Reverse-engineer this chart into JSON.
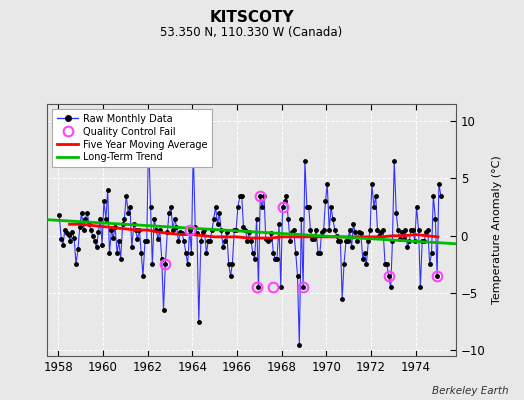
{
  "title": "KITSCOTY",
  "subtitle": "53.350 N, 110.330 W (Canada)",
  "ylabel": "Temperature Anomaly (°C)",
  "credit": "Berkeley Earth",
  "xlim": [
    1957.5,
    1975.8
  ],
  "ylim": [
    -10.5,
    11.5
  ],
  "yticks": [
    -10,
    -5,
    0,
    5,
    10
  ],
  "xticks": [
    1958,
    1960,
    1962,
    1964,
    1966,
    1968,
    1970,
    1972,
    1974
  ],
  "background_color": "#e8e8e8",
  "plot_background": "#e8e8e8",
  "raw_line_color": "#3333ff",
  "raw_dot_color": "#000000",
  "qc_fail_color": "#ff44ff",
  "moving_avg_color": "#ff0000",
  "trend_color": "#00bb00",
  "raw_data": {
    "times": [
      1958.04,
      1958.13,
      1958.21,
      1958.29,
      1958.38,
      1958.46,
      1958.54,
      1958.63,
      1958.71,
      1958.79,
      1958.88,
      1958.96,
      1959.04,
      1959.13,
      1959.21,
      1959.29,
      1959.38,
      1959.46,
      1959.54,
      1959.63,
      1959.71,
      1959.79,
      1959.88,
      1959.96,
      1960.04,
      1960.13,
      1960.21,
      1960.29,
      1960.38,
      1960.46,
      1960.54,
      1960.63,
      1960.71,
      1960.79,
      1960.88,
      1960.96,
      1961.04,
      1961.13,
      1961.21,
      1961.29,
      1961.38,
      1961.46,
      1961.54,
      1961.63,
      1961.71,
      1961.79,
      1961.88,
      1961.96,
      1962.04,
      1962.13,
      1962.21,
      1962.29,
      1962.38,
      1962.46,
      1962.54,
      1962.63,
      1962.71,
      1962.79,
      1962.88,
      1962.96,
      1963.04,
      1963.13,
      1963.21,
      1963.29,
      1963.38,
      1963.46,
      1963.54,
      1963.63,
      1963.71,
      1963.79,
      1963.88,
      1963.96,
      1964.04,
      1964.13,
      1964.21,
      1964.29,
      1964.38,
      1964.46,
      1964.54,
      1964.63,
      1964.71,
      1964.79,
      1964.88,
      1964.96,
      1965.04,
      1965.13,
      1965.21,
      1965.29,
      1965.38,
      1965.46,
      1965.54,
      1965.63,
      1965.71,
      1965.79,
      1965.88,
      1965.96,
      1966.04,
      1966.13,
      1966.21,
      1966.29,
      1966.38,
      1966.46,
      1966.54,
      1966.63,
      1966.71,
      1966.79,
      1966.88,
      1966.96,
      1967.04,
      1967.13,
      1967.21,
      1967.29,
      1967.38,
      1967.46,
      1967.54,
      1967.63,
      1967.71,
      1967.79,
      1967.88,
      1967.96,
      1968.04,
      1968.13,
      1968.21,
      1968.29,
      1968.38,
      1968.46,
      1968.54,
      1968.63,
      1968.71,
      1968.79,
      1968.88,
      1968.96,
      1969.04,
      1969.13,
      1969.21,
      1969.29,
      1969.38,
      1969.46,
      1969.54,
      1969.63,
      1969.71,
      1969.79,
      1969.88,
      1969.96,
      1970.04,
      1970.13,
      1970.21,
      1970.29,
      1970.38,
      1970.46,
      1970.54,
      1970.63,
      1970.71,
      1970.79,
      1970.88,
      1970.96,
      1971.04,
      1971.13,
      1971.21,
      1971.29,
      1971.38,
      1971.46,
      1971.54,
      1971.63,
      1971.71,
      1971.79,
      1971.88,
      1971.96,
      1972.04,
      1972.13,
      1972.21,
      1972.29,
      1972.38,
      1972.46,
      1972.54,
      1972.63,
      1972.71,
      1972.79,
      1972.88,
      1972.96,
      1973.04,
      1973.13,
      1973.21,
      1973.29,
      1973.38,
      1973.46,
      1973.54,
      1973.63,
      1973.71,
      1973.79,
      1973.88,
      1973.96,
      1974.04,
      1974.13,
      1974.21,
      1974.29,
      1974.38,
      1974.46,
      1974.54,
      1974.63,
      1974.71,
      1974.79,
      1974.88,
      1974.96,
      1975.04,
      1975.13
    ],
    "values": [
      1.8,
      -0.3,
      -0.8,
      0.5,
      0.2,
      0.1,
      -0.5,
      0.3,
      -0.2,
      -2.5,
      -1.2,
      0.8,
      2.0,
      0.5,
      1.5,
      2.0,
      1.0,
      0.5,
      0.0,
      -0.5,
      -1.0,
      0.3,
      1.5,
      -0.8,
      3.0,
      1.5,
      4.0,
      -1.5,
      0.5,
      -0.2,
      0.8,
      -1.5,
      -0.5,
      -2.0,
      1.0,
      1.5,
      3.5,
      2.0,
      2.5,
      -1.0,
      1.0,
      0.5,
      -0.3,
      0.5,
      -1.5,
      -3.5,
      -0.5,
      -0.5,
      8.5,
      2.5,
      -2.5,
      1.5,
      0.5,
      -0.3,
      0.5,
      -2.0,
      -6.5,
      -2.5,
      0.3,
      2.0,
      2.5,
      0.5,
      1.5,
      0.8,
      -0.5,
      0.3,
      0.2,
      -0.5,
      -1.5,
      -2.5,
      0.5,
      -1.5,
      7.5,
      0.8,
      0.2,
      -7.5,
      -0.5,
      0.3,
      0.5,
      -1.5,
      -0.5,
      -0.5,
      0.5,
      1.5,
      2.5,
      1.0,
      2.0,
      0.5,
      -1.0,
      -0.5,
      0.3,
      -2.5,
      -3.5,
      -2.5,
      0.5,
      0.5,
      2.5,
      3.5,
      3.5,
      0.8,
      0.5,
      -0.5,
      0.3,
      -0.5,
      -1.5,
      -2.0,
      1.5,
      -4.5,
      3.5,
      2.5,
      3.5,
      -0.3,
      -0.5,
      -0.3,
      0.2,
      -1.5,
      -2.0,
      -2.0,
      1.0,
      -4.5,
      2.5,
      3.0,
      3.5,
      1.5,
      -0.5,
      0.3,
      0.5,
      -1.5,
      -3.5,
      -9.5,
      1.5,
      -4.5,
      6.5,
      2.5,
      2.5,
      0.5,
      -0.3,
      -0.3,
      0.5,
      -1.5,
      -1.5,
      0.3,
      0.5,
      3.0,
      4.5,
      0.5,
      2.5,
      1.5,
      0.5,
      0.0,
      -0.5,
      -0.5,
      -5.5,
      -2.5,
      -0.5,
      -0.5,
      0.5,
      -1.0,
      1.0,
      0.3,
      -0.5,
      0.3,
      0.2,
      -2.0,
      -1.5,
      -2.5,
      -0.5,
      0.5,
      4.5,
      2.5,
      3.5,
      0.5,
      0.0,
      0.3,
      0.5,
      -2.5,
      -2.5,
      -3.5,
      -4.5,
      -0.5,
      6.5,
      2.0,
      0.5,
      -0.3,
      0.3,
      -0.3,
      0.5,
      -1.0,
      -0.5,
      0.5,
      0.5,
      -0.5,
      2.5,
      0.5,
      -4.5,
      -0.5,
      -0.5,
      0.3,
      0.5,
      -2.5,
      -1.5,
      3.5,
      1.5,
      -3.5,
      4.5,
      3.5
    ]
  },
  "qc_fail_times": [
    1962.04,
    1962.79,
    1963.88,
    1964.04,
    1966.88,
    1967.04,
    1967.63,
    1968.04,
    1968.96,
    1972.79,
    1974.96
  ],
  "qc_fail_values": [
    8.5,
    -2.5,
    0.5,
    7.5,
    -4.5,
    3.5,
    -4.5,
    2.5,
    -4.5,
    -3.5,
    -3.5
  ],
  "moving_avg_times": [
    1958.5,
    1959.0,
    1959.5,
    1960.0,
    1960.5,
    1961.0,
    1961.5,
    1962.0,
    1962.5,
    1963.0,
    1963.5,
    1964.0,
    1964.5,
    1965.0,
    1965.5,
    1966.0,
    1966.5,
    1967.0,
    1967.5,
    1968.0,
    1968.5,
    1969.0,
    1969.5,
    1970.0,
    1970.5,
    1971.0,
    1971.5,
    1972.0,
    1972.5,
    1973.0,
    1973.5,
    1974.0,
    1974.5,
    1975.0
  ],
  "moving_avg_values": [
    1.0,
    1.0,
    0.9,
    0.8,
    0.7,
    0.6,
    0.5,
    0.5,
    0.3,
    0.2,
    0.1,
    0.1,
    0.0,
    -0.1,
    -0.1,
    -0.1,
    -0.2,
    -0.2,
    -0.2,
    -0.1,
    -0.1,
    -0.1,
    -0.1,
    -0.1,
    -0.1,
    -0.1,
    -0.1,
    -0.1,
    -0.1,
    0.0,
    0.0,
    0.1,
    0.0,
    -0.1
  ],
  "trend_times": [
    1957.5,
    1975.8
  ],
  "trend_values": [
    1.4,
    -0.7
  ]
}
